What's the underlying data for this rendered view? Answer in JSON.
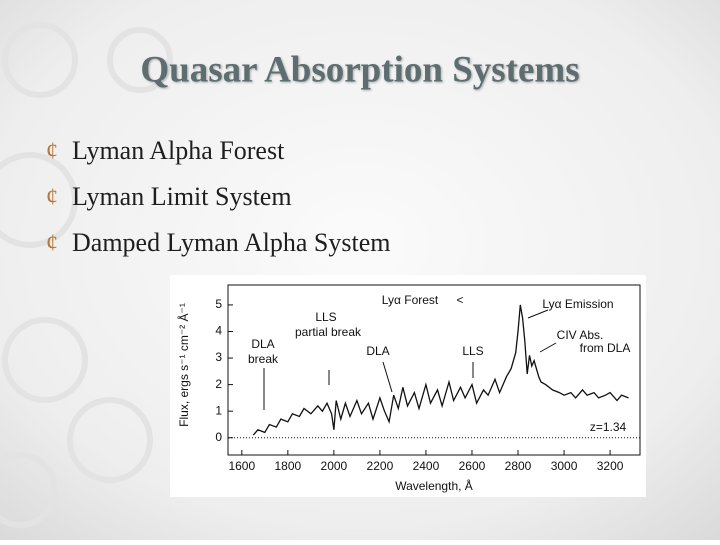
{
  "slide": {
    "title": "Quasar Absorption Systems",
    "marker": "¢",
    "bullets": [
      "Lyman Alpha Forest",
      "Lyman Limit System",
      "Damped Lyman Alpha System"
    ]
  },
  "chart_data": {
    "type": "line",
    "x_label": "Wavelength, Å",
    "y_label": "Flux, ergs s⁻¹ cm⁻² Å⁻¹",
    "annotations": [
      "Lyα Forest",
      "<",
      "Lyα Emission",
      "LLS",
      "partial break",
      "DLA",
      "break",
      "DLA",
      "LLS",
      "CIV Abs.",
      "from DLA",
      "z=1.34"
    ],
    "color": "#111111",
    "x": [
      1650,
      1670,
      1700,
      1720,
      1750,
      1770,
      1800,
      1820,
      1850,
      1870,
      1900,
      1930,
      1950,
      1970,
      1990,
      2000,
      2010,
      2030,
      2050,
      2070,
      2100,
      2120,
      2150,
      2170,
      2200,
      2220,
      2240,
      2260,
      2280,
      2300,
      2320,
      2350,
      2370,
      2400,
      2420,
      2450,
      2470,
      2500,
      2520,
      2550,
      2570,
      2600,
      2620,
      2650,
      2670,
      2700,
      2720,
      2750,
      2770,
      2790,
      2800,
      2810,
      2820,
      2830,
      2840,
      2850,
      2860,
      2870,
      2890,
      2900,
      2920,
      2950,
      2980,
      3000,
      3030,
      3050,
      3080,
      3100,
      3130,
      3150,
      3180,
      3200,
      3230,
      3250,
      3280
    ],
    "values": [
      0.1,
      0.3,
      0.2,
      0.5,
      0.4,
      0.7,
      0.6,
      0.9,
      0.8,
      1.1,
      0.9,
      1.2,
      1.0,
      1.3,
      0.9,
      0.3,
      1.4,
      0.7,
      1.3,
      0.8,
      1.4,
      0.9,
      1.3,
      0.7,
      1.5,
      1.0,
      0.6,
      1.6,
      1.1,
      1.9,
      1.2,
      1.7,
      1.1,
      2.0,
      1.3,
      1.8,
      1.2,
      2.1,
      1.4,
      1.9,
      1.5,
      2.0,
      1.3,
      1.8,
      1.6,
      2.2,
      1.7,
      2.3,
      2.6,
      3.2,
      4.0,
      5.0,
      4.5,
      3.6,
      2.4,
      3.1,
      2.7,
      2.9,
      2.3,
      2.1,
      2.0,
      1.8,
      1.7,
      1.6,
      1.7,
      1.5,
      1.8,
      1.6,
      1.7,
      1.5,
      1.6,
      1.7,
      1.4,
      1.6,
      1.5
    ],
    "xlim": [
      1540,
      3330
    ],
    "ylim": [
      -0.65,
      5.75
    ],
    "xticks": [
      1600,
      1800,
      2000,
      2200,
      2400,
      2600,
      2800,
      3000,
      3200
    ],
    "yticks": [
      0,
      1,
      2,
      3,
      4,
      5
    ]
  }
}
